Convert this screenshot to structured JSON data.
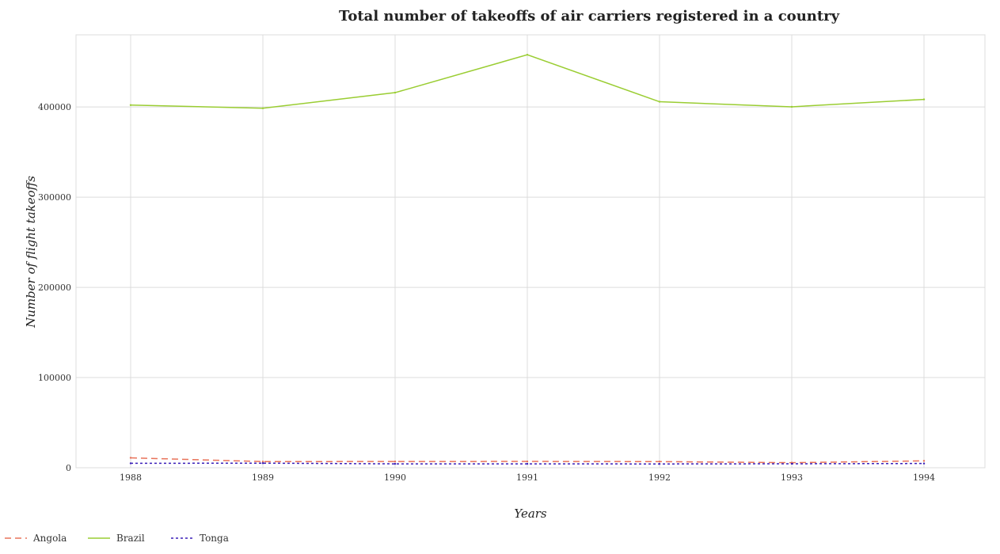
{
  "chart_data": {
    "type": "line",
    "title": "Total number of takeoffs of air carriers registered in a country",
    "xlabel": "Years",
    "ylabel": "Number of flight takeoffs",
    "categories": [
      "1988",
      "1989",
      "1990",
      "1991",
      "1992",
      "1993",
      "1994"
    ],
    "y_ticks": [
      0,
      100000,
      200000,
      300000,
      400000
    ],
    "y_tick_labels": [
      "0",
      "100000",
      "200000",
      "300000",
      "400000"
    ],
    "ylim": [
      0,
      480000
    ],
    "grid": true,
    "legend_position": "bottom-left",
    "series": [
      {
        "name": "Angola",
        "color": "#e8735a",
        "dash": "8,5",
        "values": [
          11000,
          6800,
          6900,
          7000,
          6800,
          5600,
          7600
        ]
      },
      {
        "name": "Brazil",
        "color": "#9acd32",
        "dash": "",
        "values": [
          402100,
          398600,
          415900,
          457900,
          405800,
          400200,
          408400
        ]
      },
      {
        "name": "Tonga",
        "color": "#3a1fb8",
        "dash": "3,3",
        "values": [
          4900,
          5100,
          4300,
          4300,
          4200,
          4400,
          4700
        ]
      }
    ]
  }
}
